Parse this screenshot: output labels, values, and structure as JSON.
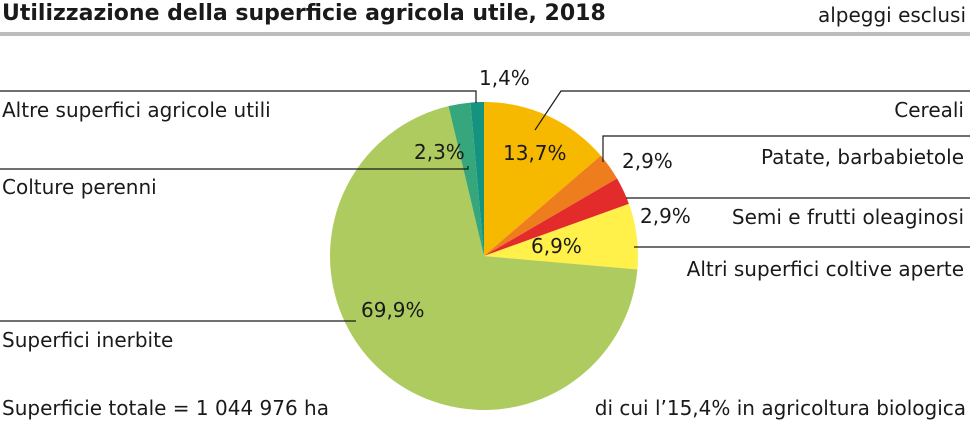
{
  "header": {
    "title": "Utilizzazione della superficie agricola utile, 2018",
    "subtitle": "alpeggi esclusi"
  },
  "footer": {
    "total": "Superficie totale = 1 044 976 ha",
    "organic": "di cui l’15,4% in agricoltura biologica"
  },
  "chart_data": {
    "type": "pie",
    "title": "Utilizzazione della superficie agricola utile, 2018",
    "categories": [
      "Cereali",
      "Patate, barbabietole",
      "Semi e frutti oleaginosi",
      "Altri superfici coltive aperte",
      "Superfici inerbite",
      "Colture perenni",
      "Altre superfici agricole utili"
    ],
    "values": [
      13.7,
      2.9,
      2.9,
      6.9,
      69.9,
      2.3,
      1.4
    ],
    "value_labels": [
      "13,7%",
      "2,9%",
      "2,9%",
      "6,9%",
      "69,9%",
      "2,3%",
      "1,4%"
    ],
    "colors": [
      "#f7b900",
      "#ee7d1e",
      "#e32b2b",
      "#fff04a",
      "#aecb5f",
      "#36a77c",
      "#159381"
    ],
    "legend": "outside-labels"
  }
}
